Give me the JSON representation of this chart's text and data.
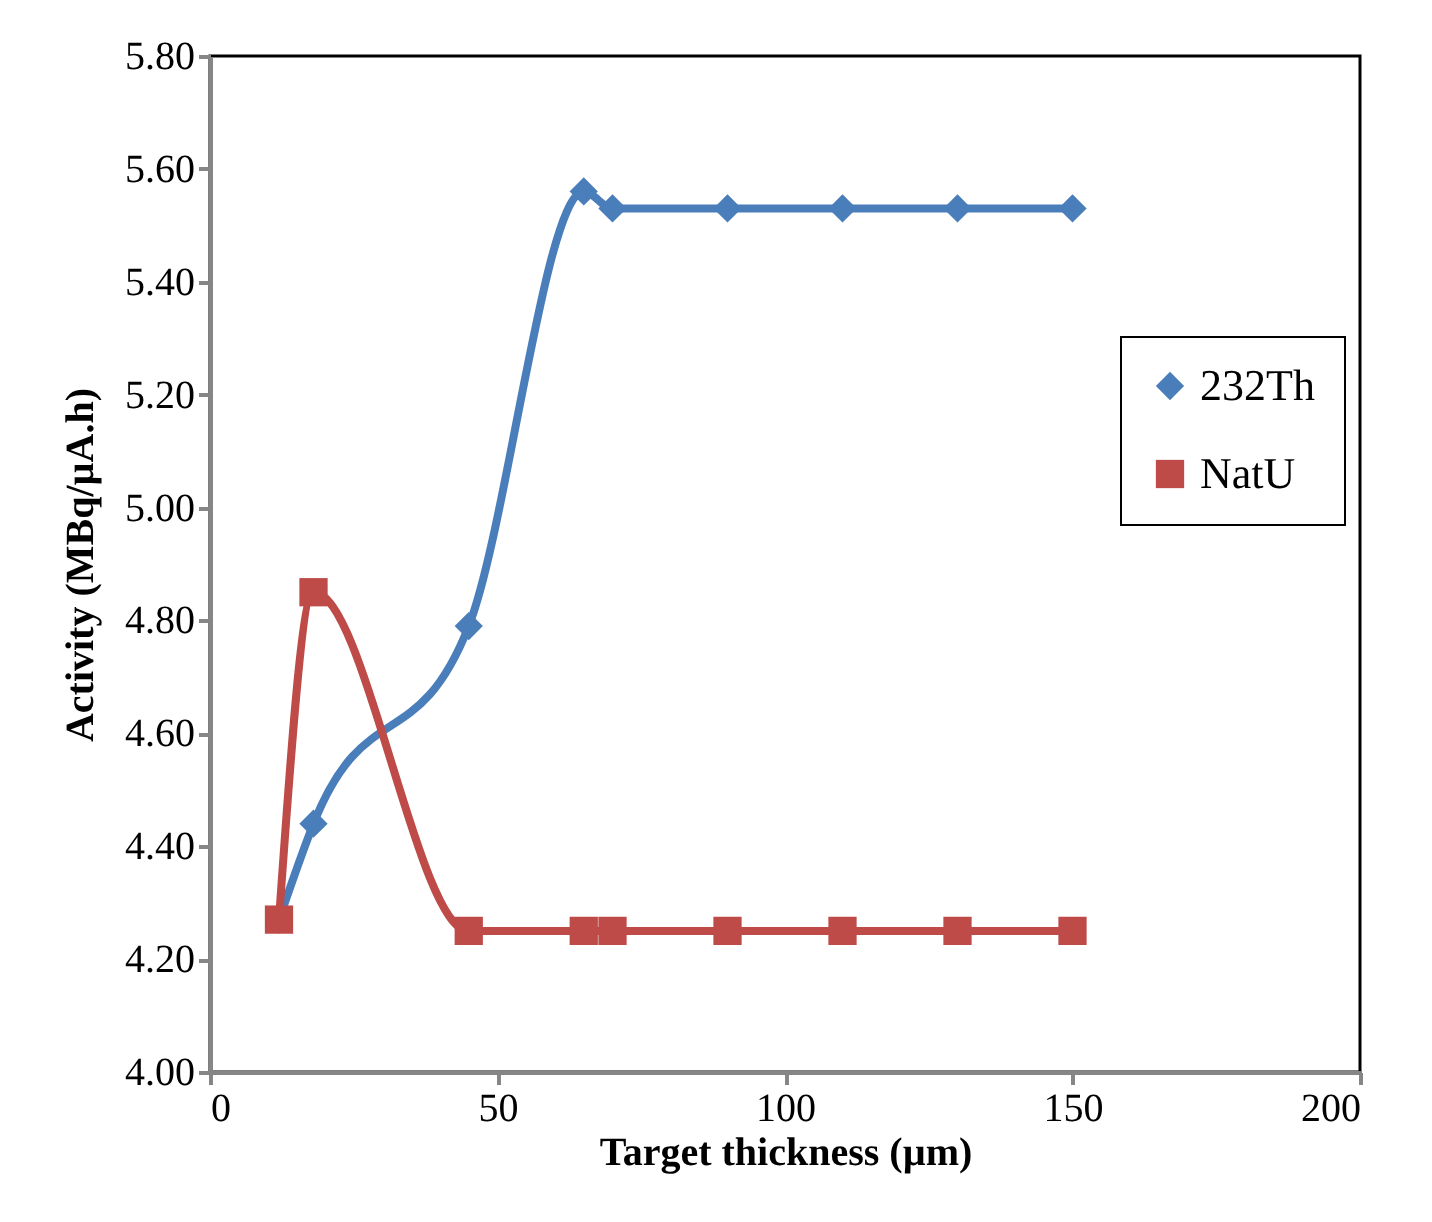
{
  "chart_data": {
    "type": "line",
    "xlabel": "Target thickness (µm)",
    "ylabel": "Activity (MBq/µA.h)",
    "xlim": [
      0,
      200
    ],
    "xticks": [
      0,
      50,
      100,
      150,
      200
    ],
    "ylim": [
      4.0,
      5.8
    ],
    "yticks": [
      {
        "value": 4.0,
        "label": "4.00"
      },
      {
        "value": 4.2,
        "label": "4.20"
      },
      {
        "value": 4.4,
        "label": "4.40"
      },
      {
        "value": 4.6,
        "label": "4.60"
      },
      {
        "value": 4.8,
        "label": "4.80"
      },
      {
        "value": 5.0,
        "label": "5.00"
      },
      {
        "value": 5.2,
        "label": "5.20"
      },
      {
        "value": 5.4,
        "label": "5.40"
      },
      {
        "value": 5.6,
        "label": "5.60"
      },
      {
        "value": 5.8,
        "label": "5.80"
      }
    ],
    "x": [
      12,
      18,
      45,
      65,
      70,
      90,
      110,
      130,
      150
    ],
    "legend": "right",
    "grid": false,
    "series": [
      {
        "name": "232Th",
        "color": "#4a7ebb",
        "marker": "diamond",
        "values": [
          4.27,
          4.44,
          4.79,
          5.56,
          5.53,
          5.53,
          5.53,
          5.53,
          5.53
        ]
      },
      {
        "name": "NatU",
        "color": "#be4b48",
        "marker": "square",
        "values": [
          4.27,
          4.85,
          4.25,
          4.25,
          4.25,
          4.25,
          4.25,
          4.25,
          4.25
        ]
      }
    ]
  }
}
